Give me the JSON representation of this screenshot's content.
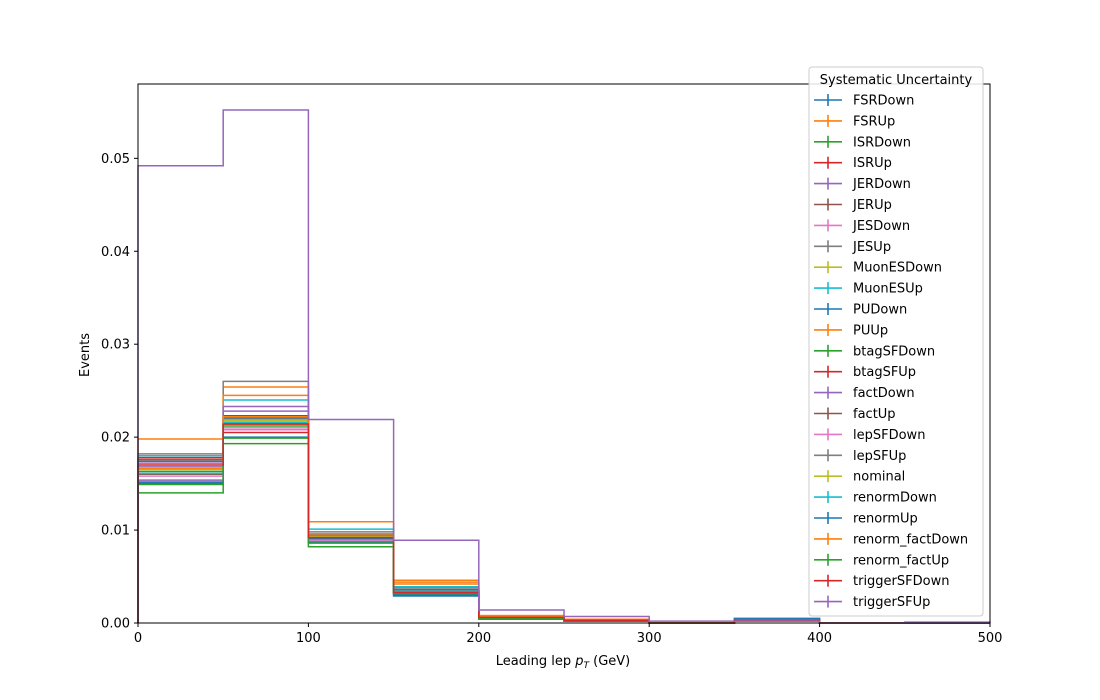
{
  "chart_data": {
    "type": "histogram-step",
    "xlabel_main": "Leading lep ",
    "xlabel_p": "p",
    "xlabel_sub": "T",
    "xlabel_unit": " (GeV)",
    "ylabel": "Events",
    "xlim": [
      0,
      500
    ],
    "ylim": [
      0,
      0.058
    ],
    "xticks": [
      0,
      100,
      200,
      300,
      400,
      500
    ],
    "yticks": [
      0.0,
      0.01,
      0.02,
      0.03,
      0.04,
      0.05
    ],
    "ytick_labels": [
      "0.00",
      "0.01",
      "0.02",
      "0.03",
      "0.04",
      "0.05"
    ],
    "bin_edges": [
      0,
      50,
      100,
      150,
      200,
      250,
      300,
      350,
      400,
      450,
      500
    ],
    "grid": false,
    "legend": {
      "title": "Systematic Uncertainty",
      "placement": "upper-right"
    },
    "series": [
      {
        "name": "FSRDown",
        "color": "#1f77b4",
        "values": [
          0.0153,
          0.0215,
          0.009,
          0.0029,
          0.0004,
          0.0002,
          0.0,
          0.0004,
          0.0,
          0.0
        ]
      },
      {
        "name": "FSRUp",
        "color": "#ff7f0e",
        "values": [
          0.0198,
          0.0254,
          0.0109,
          0.0046,
          0.0008,
          0.0004,
          0.0,
          0.0002,
          0.0,
          0.0
        ]
      },
      {
        "name": "ISRDown",
        "color": "#2ca02c",
        "values": [
          0.014,
          0.0193,
          0.0082,
          0.0031,
          0.0005,
          0.0003,
          0.0,
          0.0003,
          0.0,
          0.0
        ]
      },
      {
        "name": "ISRUp",
        "color": "#d62728",
        "values": [
          0.0178,
          0.0223,
          0.0095,
          0.0036,
          0.0007,
          0.0003,
          0.0,
          0.0003,
          0.0,
          0.0
        ]
      },
      {
        "name": "JERDown",
        "color": "#9467bd",
        "values": [
          0.0168,
          0.0228,
          0.0092,
          0.0033,
          0.0006,
          0.0003,
          0.0,
          0.0003,
          0.0,
          0.0
        ]
      },
      {
        "name": "JERUp",
        "color": "#8c564b",
        "values": [
          0.0174,
          0.0218,
          0.0091,
          0.0034,
          0.0006,
          0.0003,
          0.0,
          0.0004,
          0.0,
          0.0
        ]
      },
      {
        "name": "JESDown",
        "color": "#e377c2",
        "values": [
          0.0154,
          0.0208,
          0.0088,
          0.0032,
          0.0005,
          0.0003,
          0.0,
          0.0003,
          0.0,
          0.0
        ]
      },
      {
        "name": "JESUp",
        "color": "#7f7f7f",
        "values": [
          0.0182,
          0.026,
          0.0098,
          0.0038,
          0.0007,
          0.0004,
          0.0,
          0.0004,
          0.0,
          0.0
        ]
      },
      {
        "name": "MuonESDown",
        "color": "#bcbd22",
        "values": [
          0.0165,
          0.0214,
          0.0093,
          0.0035,
          0.0006,
          0.0003,
          0.0,
          0.0003,
          0.0,
          0.0
        ]
      },
      {
        "name": "MuonESUp",
        "color": "#17becf",
        "values": [
          0.018,
          0.024,
          0.0101,
          0.0039,
          0.0007,
          0.0004,
          0.0,
          0.0004,
          0.0,
          0.0
        ]
      },
      {
        "name": "PUDown",
        "color": "#1f77b4",
        "values": [
          0.015,
          0.02,
          0.0087,
          0.003,
          0.0005,
          0.0002,
          0.0,
          0.0005,
          0.0,
          0.0
        ]
      },
      {
        "name": "PUUp",
        "color": "#ff7f0e",
        "values": [
          0.0167,
          0.0245,
          0.0096,
          0.0044,
          0.0008,
          0.0004,
          0.0,
          0.0003,
          0.0,
          0.0
        ]
      },
      {
        "name": "btagSFDown",
        "color": "#2ca02c",
        "values": [
          0.0163,
          0.0212,
          0.0089,
          0.0033,
          0.0006,
          0.0003,
          0.0,
          0.0003,
          0.0,
          0.0
        ]
      },
      {
        "name": "btagSFUp",
        "color": "#d62728",
        "values": [
          0.0176,
          0.0205,
          0.0093,
          0.0034,
          0.0006,
          0.0003,
          0.0,
          0.0003,
          0.0,
          0.0
        ]
      },
      {
        "name": "factDown",
        "color": "#9467bd",
        "values": [
          0.0172,
          0.0233,
          0.0094,
          0.0035,
          0.0006,
          0.0003,
          0.0,
          0.0003,
          0.0,
          0.0
        ]
      },
      {
        "name": "factUp",
        "color": "#8c564b",
        "values": [
          0.016,
          0.022,
          0.009,
          0.0033,
          0.0006,
          0.0003,
          0.0,
          0.0003,
          0.0,
          0.0
        ]
      },
      {
        "name": "lepSFDown",
        "color": "#e377c2",
        "values": [
          0.0158,
          0.021,
          0.0089,
          0.0032,
          0.0005,
          0.0003,
          0.0,
          0.0003,
          0.0,
          0.0
        ]
      },
      {
        "name": "lepSFUp",
        "color": "#7f7f7f",
        "values": [
          0.0175,
          0.022,
          0.0095,
          0.0035,
          0.0006,
          0.0003,
          0.0,
          0.0003,
          0.0,
          0.0
        ]
      },
      {
        "name": "nominal",
        "color": "#bcbd22",
        "values": [
          0.0167,
          0.0218,
          0.0093,
          0.0034,
          0.0006,
          0.0003,
          0.0,
          0.0003,
          0.0,
          0.0
        ]
      },
      {
        "name": "renormDown",
        "color": "#17becf",
        "values": [
          0.0161,
          0.0216,
          0.009,
          0.0034,
          0.0006,
          0.0003,
          0.0,
          0.0003,
          0.0,
          0.0
        ]
      },
      {
        "name": "renormUp",
        "color": "#1f77b4",
        "values": [
          0.0151,
          0.0221,
          0.0091,
          0.0036,
          0.0006,
          0.0003,
          0.0,
          0.0003,
          0.0,
          0.0
        ]
      },
      {
        "name": "renorm_factDown",
        "color": "#ff7f0e",
        "values": [
          0.0166,
          0.0222,
          0.0096,
          0.0042,
          0.0007,
          0.0003,
          0.0,
          0.0003,
          0.0,
          0.0
        ]
      },
      {
        "name": "renorm_factUp",
        "color": "#2ca02c",
        "values": [
          0.0149,
          0.0199,
          0.0086,
          0.0032,
          0.0005,
          0.0003,
          0.0,
          0.0003,
          0.0,
          0.0
        ]
      },
      {
        "name": "triggerSFDown",
        "color": "#d62728",
        "values": [
          0.017,
          0.0214,
          0.0092,
          0.0033,
          0.0006,
          0.0003,
          0.0,
          0.0003,
          0.0,
          0.0
        ]
      },
      {
        "name": "triggerSFUp",
        "color": "#9467bd",
        "values": [
          0.0492,
          0.0552,
          0.0219,
          0.0089,
          0.0014,
          0.0007,
          0.0002,
          0.0002,
          0.0,
          0.0001
        ]
      }
    ]
  }
}
